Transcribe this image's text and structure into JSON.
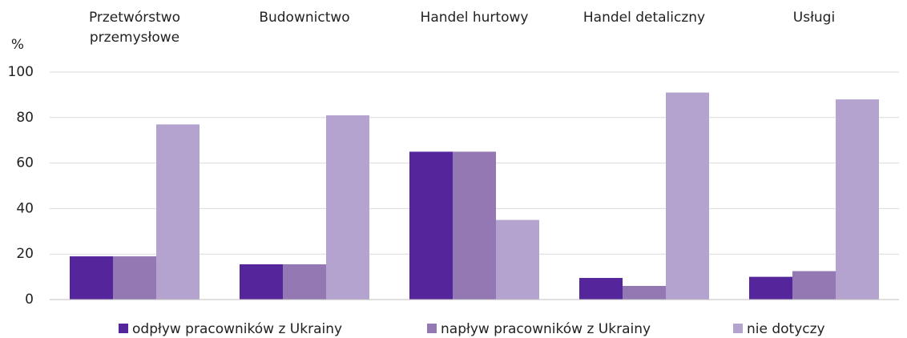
{
  "chart_data": {
    "type": "bar",
    "y_label": "%",
    "categories": [
      "Przetwórstwo przemysłowe",
      "Budownictwo",
      "Handel hurtowy",
      "Handel detaliczny",
      "Usługi"
    ],
    "series": [
      {
        "name": "odpływ pracowników z Ukrainy",
        "color": "#55269b",
        "values": [
          19,
          15.5,
          65,
          9.5,
          10
        ]
      },
      {
        "name": "napływ pracowników z Ukrainy",
        "color": "#9378b3",
        "values": [
          19,
          15.5,
          65,
          6,
          12.5
        ]
      },
      {
        "name": "nie dotyczy",
        "color": "#b4a3cf",
        "values": [
          77,
          81,
          35,
          91,
          88
        ]
      }
    ],
    "ylim": [
      0,
      100
    ],
    "yticks": [
      0,
      20,
      40,
      60,
      80,
      100
    ],
    "grid": true,
    "legend": "bottom"
  }
}
